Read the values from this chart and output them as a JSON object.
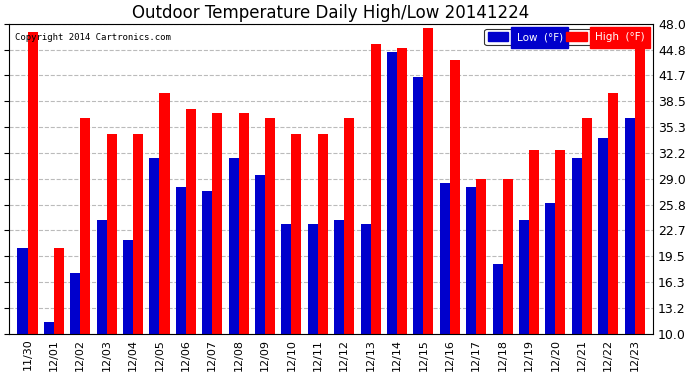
{
  "title": "Outdoor Temperature Daily High/Low 20141224",
  "copyright": "Copyright 2014 Cartronics.com",
  "legend_low": "Low  (°F)",
  "legend_high": "High  (°F)",
  "ylabel_right": [
    "48.0",
    "44.8",
    "41.7",
    "38.5",
    "35.3",
    "32.2",
    "29.0",
    "25.8",
    "22.7",
    "19.5",
    "16.3",
    "13.2",
    "10.0"
  ],
  "yticks": [
    48.0,
    44.8,
    41.7,
    38.5,
    35.3,
    32.2,
    29.0,
    25.8,
    22.7,
    19.5,
    16.3,
    13.2,
    10.0
  ],
  "ylim": [
    10.0,
    48.0
  ],
  "categories": [
    "11/30",
    "12/01",
    "12/02",
    "12/03",
    "12/04",
    "12/05",
    "12/06",
    "12/07",
    "12/08",
    "12/09",
    "12/10",
    "12/11",
    "12/12",
    "12/13",
    "12/14",
    "12/15",
    "12/16",
    "12/17",
    "12/18",
    "12/19",
    "12/20",
    "12/21",
    "12/22",
    "12/23"
  ],
  "high": [
    47.0,
    20.5,
    36.5,
    34.5,
    34.5,
    39.5,
    37.5,
    37.0,
    37.0,
    36.5,
    34.5,
    34.5,
    36.5,
    45.5,
    45.0,
    47.5,
    43.5,
    29.0,
    29.0,
    32.5,
    32.5,
    36.5,
    39.5,
    45.0
  ],
  "low": [
    20.5,
    11.5,
    17.5,
    24.0,
    21.5,
    31.5,
    28.0,
    27.5,
    31.5,
    29.5,
    23.5,
    23.5,
    24.0,
    23.5,
    44.5,
    41.5,
    28.5,
    28.0,
    18.5,
    24.0,
    26.0,
    31.5,
    34.0,
    36.5
  ],
  "bar_width": 0.38,
  "bar_color_high": "#ff0000",
  "bar_color_low": "#0000cc",
  "background_color": "#ffffff",
  "grid_color": "#bbbbbb",
  "title_fontsize": 12,
  "tick_fontsize": 8,
  "ylabel_fontsize": 9,
  "legend_low_bg": "#0000cc",
  "legend_high_bg": "#ff0000",
  "legend_text_color": "#ffffff"
}
